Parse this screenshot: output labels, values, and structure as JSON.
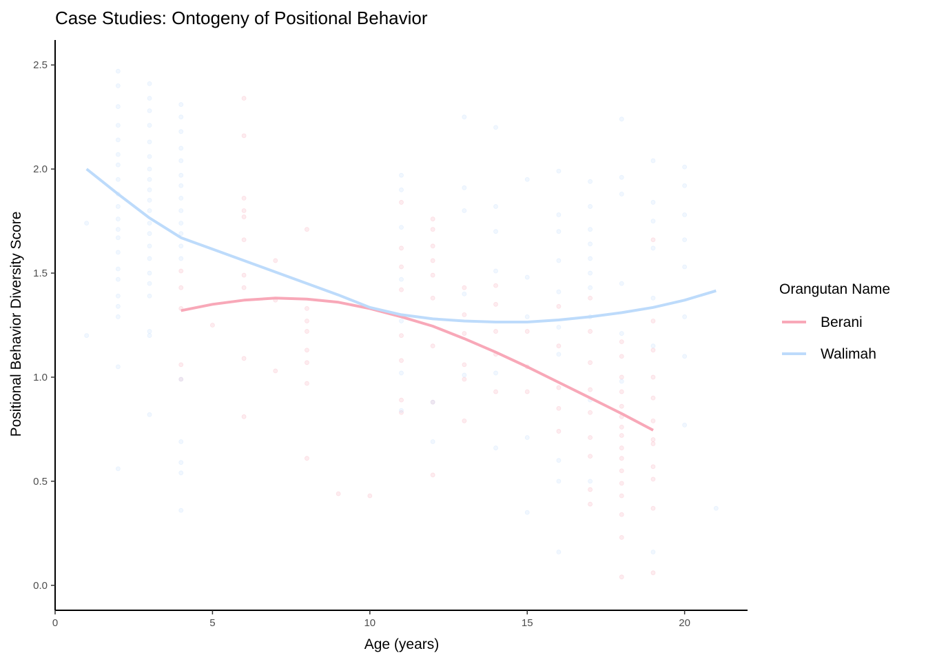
{
  "chart_data": {
    "type": "line",
    "title": "Case Studies: Ontogeny of Positional Behavior",
    "xlabel": "Age (years)",
    "ylabel": "Positional Behavior Diversity Score",
    "xlim": [
      0,
      22
    ],
    "ylim": [
      -0.12,
      2.62
    ],
    "x_ticks": [
      "0",
      "5",
      "10",
      "15",
      "20"
    ],
    "x_tick_values": [
      0,
      5,
      10,
      15,
      20
    ],
    "y_ticks": [
      "0.0",
      "0.5",
      "1.0",
      "1.5",
      "2.0",
      "2.5"
    ],
    "y_tick_values": [
      0,
      0.5,
      1.0,
      1.5,
      2.0,
      2.5
    ],
    "grid": false,
    "legend": {
      "title": "Orangutan Name",
      "placement": "right"
    },
    "series": [
      {
        "name": "Berani",
        "color": "#f8a8b8",
        "smooth": {
          "x": [
            4,
            5,
            6,
            7,
            8,
            9,
            10,
            11,
            12,
            13,
            14,
            15,
            16,
            17,
            18,
            19
          ],
          "y": [
            1.32,
            1.35,
            1.37,
            1.38,
            1.375,
            1.36,
            1.33,
            1.29,
            1.245,
            1.185,
            1.12,
            1.05,
            0.975,
            0.9,
            0.825,
            0.745
          ]
        },
        "points": {
          "x": [
            4,
            4,
            4,
            4,
            4,
            5,
            6,
            6,
            6,
            6,
            6,
            6,
            6,
            6,
            6,
            6,
            7,
            7,
            7,
            8,
            8,
            8,
            8,
            8,
            8,
            8,
            8,
            9,
            10,
            11,
            11,
            11,
            11,
            11,
            11,
            11,
            11,
            12,
            12,
            12,
            12,
            12,
            12,
            12,
            12,
            12,
            13,
            13,
            13,
            13,
            13,
            13,
            14,
            14,
            14,
            14,
            14,
            15,
            15,
            15,
            16,
            16,
            16,
            16,
            16,
            17,
            17,
            17,
            17,
            17,
            17,
            17,
            17,
            17,
            18,
            18,
            18,
            18,
            18,
            18,
            18,
            18,
            18,
            18,
            18,
            18,
            18,
            18,
            18,
            18,
            19,
            19,
            19,
            19,
            19,
            19,
            19,
            19,
            19,
            19,
            19,
            19
          ],
          "y": [
            1.43,
            1.33,
            1.51,
            1.06,
            0.99,
            1.25,
            2.34,
            2.16,
            1.86,
            1.8,
            1.77,
            1.66,
            1.49,
            1.43,
            1.09,
            0.81,
            1.56,
            1.37,
            1.03,
            1.71,
            1.33,
            1.27,
            1.22,
            1.13,
            1.07,
            0.97,
            0.61,
            0.44,
            0.43,
            1.84,
            1.62,
            1.53,
            1.42,
            0.89,
            0.83,
            1.08,
            1.2,
            1.76,
            1.71,
            1.63,
            1.56,
            1.49,
            1.38,
            1.15,
            0.88,
            0.53,
            1.43,
            1.3,
            1.06,
            0.99,
            0.79,
            1.21,
            1.44,
            1.22,
            1.11,
            0.93,
            1.35,
            1.22,
            1.05,
            0.93,
            1.34,
            1.15,
            0.95,
            0.85,
            0.74,
            1.38,
            1.22,
            1.07,
            0.94,
            0.83,
            0.71,
            0.62,
            0.46,
            0.39,
            1.17,
            1.1,
            1.0,
            0.93,
            0.86,
            0.81,
            0.76,
            0.72,
            0.66,
            0.61,
            0.55,
            0.49,
            0.43,
            0.34,
            0.23,
            0.04,
            1.66,
            1.27,
            1.13,
            1.0,
            0.9,
            0.79,
            0.7,
            0.68,
            0.57,
            0.51,
            0.37,
            0.06
          ]
        }
      },
      {
        "name": "Walimah",
        "color": "#bddbfb",
        "smooth": {
          "x": [
            1,
            2,
            3,
            4,
            5,
            6,
            7,
            8,
            9,
            10,
            11,
            12,
            13,
            14,
            15,
            16,
            17,
            18,
            19,
            20,
            21
          ],
          "y": [
            2.0,
            1.88,
            1.765,
            1.67,
            1.615,
            1.56,
            1.505,
            1.45,
            1.395,
            1.335,
            1.3,
            1.28,
            1.27,
            1.265,
            1.265,
            1.275,
            1.29,
            1.31,
            1.335,
            1.37,
            1.415
          ]
        },
        "points": {
          "x": [
            1,
            1,
            2,
            2,
            2,
            2,
            2,
            2,
            2,
            2,
            2,
            2,
            2,
            2,
            2,
            2,
            2,
            2,
            2,
            2,
            2,
            2,
            2,
            3,
            3,
            3,
            3,
            3,
            3,
            3,
            3,
            3,
            3,
            3,
            3,
            3,
            3,
            3,
            3,
            3,
            3,
            3,
            3,
            3,
            4,
            4,
            4,
            4,
            4,
            4,
            4,
            4,
            4,
            4,
            4,
            4,
            4,
            4,
            4,
            4,
            4,
            4,
            11,
            11,
            11,
            11,
            11,
            11,
            11,
            12,
            12,
            13,
            13,
            13,
            13,
            13,
            14,
            14,
            14,
            14,
            14,
            14,
            15,
            15,
            15,
            15,
            15,
            16,
            16,
            16,
            16,
            16,
            16,
            16,
            16,
            16,
            16,
            17,
            17,
            17,
            17,
            17,
            17,
            17,
            17,
            17,
            17,
            18,
            18,
            18,
            18,
            18,
            18,
            19,
            19,
            19,
            19,
            19,
            19,
            19,
            20,
            20,
            20,
            20,
            20,
            20,
            20,
            20,
            21
          ],
          "y": [
            1.74,
            1.2,
            2.47,
            2.4,
            2.3,
            2.21,
            2.14,
            2.07,
            2.02,
            1.95,
            1.88,
            1.82,
            1.76,
            1.71,
            1.67,
            1.6,
            1.52,
            1.47,
            1.39,
            1.34,
            1.29,
            1.05,
            0.56,
            2.41,
            2.34,
            2.28,
            2.21,
            2.13,
            2.06,
            2.0,
            1.95,
            1.9,
            1.85,
            1.8,
            1.74,
            1.69,
            1.63,
            1.57,
            1.5,
            1.45,
            1.39,
            1.22,
            1.2,
            0.82,
            2.31,
            2.25,
            2.18,
            2.1,
            2.04,
            1.97,
            1.92,
            1.86,
            1.8,
            1.74,
            1.69,
            1.63,
            1.57,
            0.99,
            0.69,
            0.59,
            0.54,
            0.36,
            1.97,
            1.9,
            1.72,
            1.47,
            1.27,
            1.02,
            0.84,
            0.69,
            0.88,
            2.25,
            1.91,
            1.8,
            1.4,
            1.01,
            2.2,
            1.82,
            1.7,
            1.51,
            1.02,
            0.66,
            1.95,
            1.48,
            1.29,
            0.71,
            0.35,
            1.99,
            1.78,
            1.7,
            1.56,
            1.41,
            1.24,
            1.11,
            0.6,
            0.5,
            0.16,
            1.94,
            1.82,
            1.71,
            1.64,
            1.57,
            1.5,
            1.43,
            1.29,
            0.89,
            0.5,
            2.24,
            1.96,
            1.88,
            1.45,
            1.21,
            0.98,
            2.04,
            1.84,
            1.75,
            1.62,
            1.38,
            1.15,
            0.16,
            2.01,
            1.92,
            1.78,
            1.66,
            1.53,
            1.29,
            1.1,
            0.77,
            0.37
          ]
        }
      }
    ]
  }
}
